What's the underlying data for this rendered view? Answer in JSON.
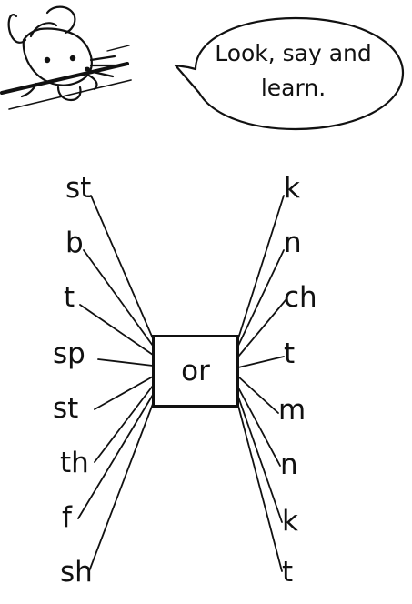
{
  "speech_bubble": {
    "line1": "Look, say and",
    "line2": "learn."
  },
  "center": {
    "label": "or"
  },
  "left_onsets": [
    {
      "text": "st"
    },
    {
      "text": "b"
    },
    {
      "text": "t"
    },
    {
      "text": "sp"
    },
    {
      "text": "st"
    },
    {
      "text": "th"
    },
    {
      "text": "f"
    },
    {
      "text": "sh"
    }
  ],
  "right_endings": [
    {
      "text": "k"
    },
    {
      "text": "n"
    },
    {
      "text": "ch"
    },
    {
      "text": "t"
    },
    {
      "text": "m"
    },
    {
      "text": "n"
    },
    {
      "text": "k"
    },
    {
      "text": "t"
    }
  ],
  "icons": {
    "mascot": "mouse-peeking-icon"
  }
}
